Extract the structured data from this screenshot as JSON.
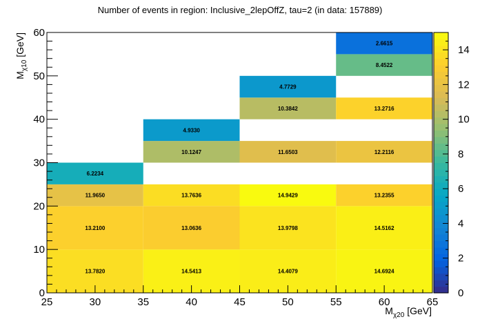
{
  "chart_data": {
    "type": "heatmap",
    "title": "Number of events in region: Inclusive_2lepOffZ, tau=2 (in data: 157889)",
    "xlabel": {
      "main": "M",
      "sub": "χ20",
      "unit": " [GeV]"
    },
    "ylabel": {
      "main": "M",
      "sub": "χ10",
      "unit": " [GeV]"
    },
    "xlim": [
      25,
      65
    ],
    "ylim": [
      0,
      60
    ],
    "zlim": [
      0,
      15
    ],
    "x_ticks": [
      25,
      30,
      35,
      40,
      45,
      50,
      55,
      60,
      65
    ],
    "y_ticks": [
      0,
      10,
      20,
      30,
      40,
      50,
      60
    ],
    "z_ticks": [
      0,
      2,
      4,
      6,
      8,
      10,
      12,
      14
    ],
    "colormap": [
      "#352a87",
      "#0363e1",
      "#1485d4",
      "#06a7c6",
      "#38b99e",
      "#92bf73",
      "#d9ba56",
      "#fcce2e",
      "#f9fb0e"
    ],
    "cells": [
      {
        "x": [
          25,
          35
        ],
        "y": [
          0,
          10
        ],
        "value": 13.782,
        "label": "13.7820"
      },
      {
        "x": [
          35,
          45
        ],
        "y": [
          0,
          10
        ],
        "value": 14.5413,
        "label": "14.5413"
      },
      {
        "x": [
          45,
          55
        ],
        "y": [
          0,
          10
        ],
        "value": 14.4079,
        "label": "14.4079"
      },
      {
        "x": [
          55,
          65
        ],
        "y": [
          0,
          10
        ],
        "value": 14.6924,
        "label": "14.6924"
      },
      {
        "x": [
          25,
          35
        ],
        "y": [
          10,
          20
        ],
        "value": 13.21,
        "label": "13.2100"
      },
      {
        "x": [
          35,
          45
        ],
        "y": [
          10,
          20
        ],
        "value": 13.0636,
        "label": "13.0636"
      },
      {
        "x": [
          45,
          55
        ],
        "y": [
          10,
          20
        ],
        "value": 13.9798,
        "label": "13.9798"
      },
      {
        "x": [
          55,
          65
        ],
        "y": [
          10,
          20
        ],
        "value": 14.5162,
        "label": "14.5162"
      },
      {
        "x": [
          25,
          35
        ],
        "y": [
          20,
          25
        ],
        "value": 11.965,
        "label": "11.9650"
      },
      {
        "x": [
          35,
          45
        ],
        "y": [
          20,
          25
        ],
        "value": 13.7636,
        "label": "13.7636"
      },
      {
        "x": [
          45,
          55
        ],
        "y": [
          20,
          25
        ],
        "value": 14.9429,
        "label": "14.9429"
      },
      {
        "x": [
          55,
          65
        ],
        "y": [
          20,
          25
        ],
        "value": 13.2355,
        "label": "13.2355"
      },
      {
        "x": [
          25,
          35
        ],
        "y": [
          25,
          30
        ],
        "value": 6.2234,
        "label": "6.2234"
      },
      {
        "x": [
          35,
          45
        ],
        "y": [
          30,
          35
        ],
        "value": 10.1247,
        "label": "10.1247"
      },
      {
        "x": [
          45,
          55
        ],
        "y": [
          30,
          35
        ],
        "value": 11.6503,
        "label": "11.6503"
      },
      {
        "x": [
          55,
          65
        ],
        "y": [
          30,
          35
        ],
        "value": 12.2116,
        "label": "12.2116"
      },
      {
        "x": [
          35,
          45
        ],
        "y": [
          35,
          40
        ],
        "value": 4.933,
        "label": "4.9330"
      },
      {
        "x": [
          45,
          55
        ],
        "y": [
          40,
          45
        ],
        "value": 10.3842,
        "label": "10.3842"
      },
      {
        "x": [
          55,
          65
        ],
        "y": [
          40,
          45
        ],
        "value": 13.2716,
        "label": "13.2716"
      },
      {
        "x": [
          45,
          55
        ],
        "y": [
          45,
          50
        ],
        "value": 4.7729,
        "label": "4.7729"
      },
      {
        "x": [
          55,
          65
        ],
        "y": [
          50,
          55
        ],
        "value": 8.4522,
        "label": "8.4522"
      },
      {
        "x": [
          55,
          65
        ],
        "y": [
          55,
          60
        ],
        "value": 2.6615,
        "label": "2.6615"
      }
    ]
  }
}
